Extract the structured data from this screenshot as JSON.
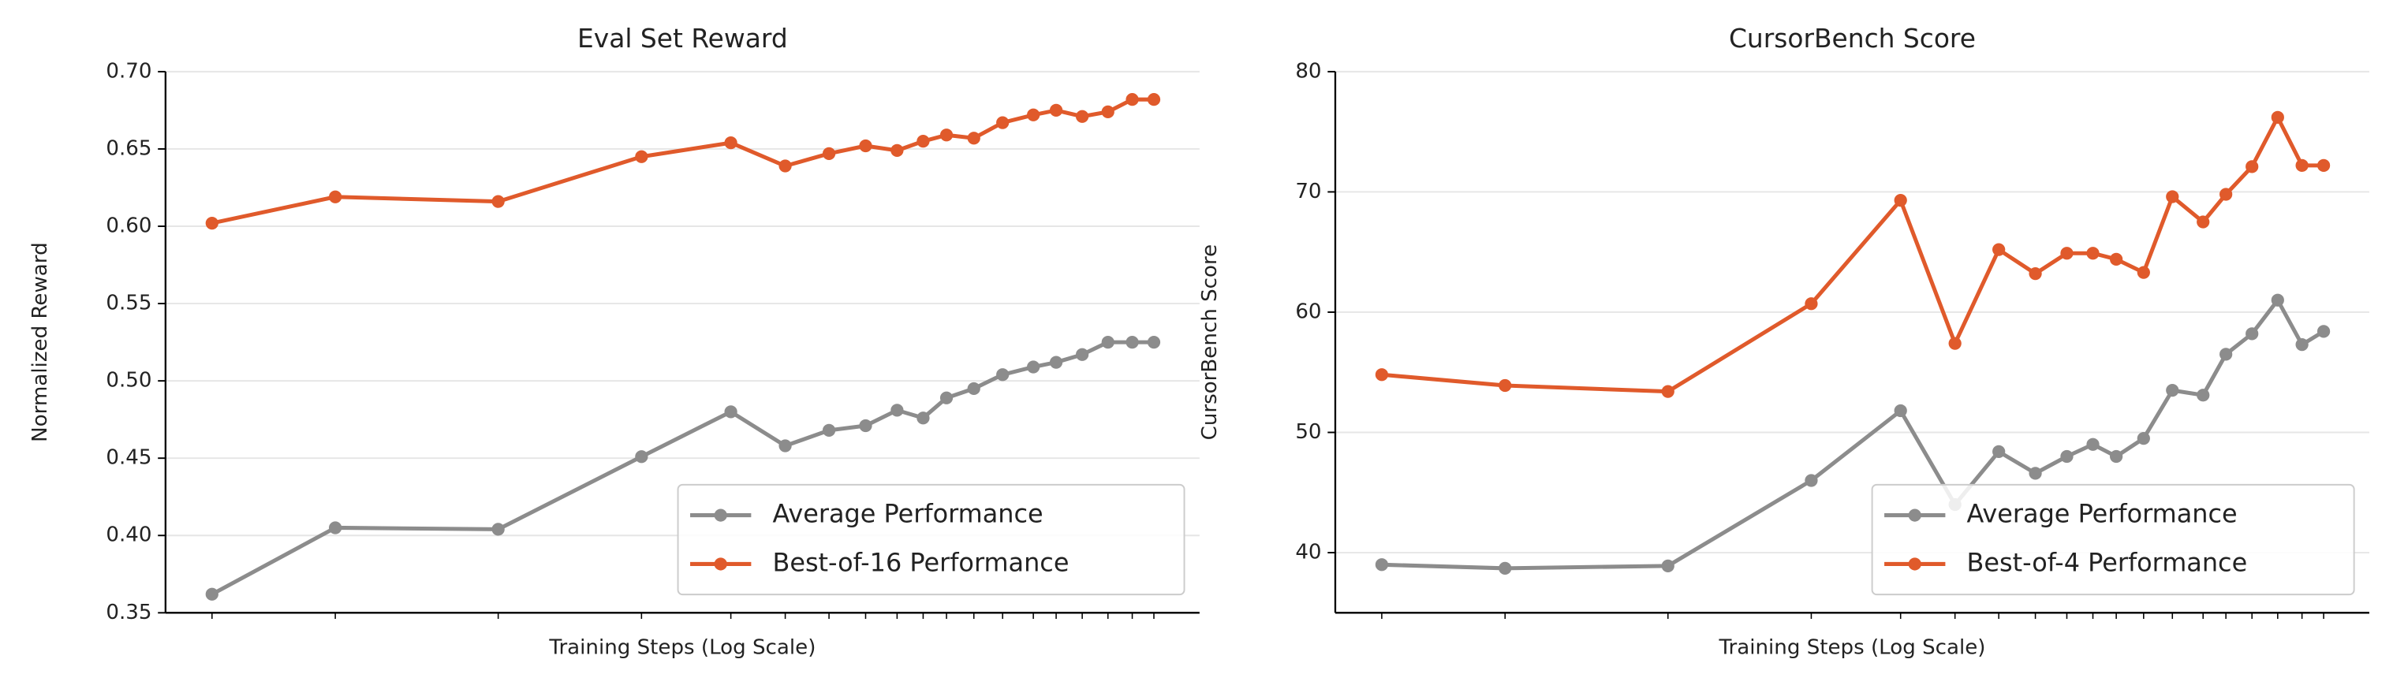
{
  "chart_data": [
    {
      "type": "line",
      "title": "Eval Set Reward",
      "xlabel": "Training Steps (Log Scale)",
      "ylabel": "Normalized Reward",
      "xscale": "log",
      "xlim": [
        1,
        100
      ],
      "x": [
        1.23,
        2.13,
        4.4,
        8.33,
        12.4,
        15.8,
        19.2,
        22.6,
        26.0,
        29.2,
        32.4,
        36.6,
        41.6,
        47.7,
        52.8,
        59.3,
        66.5,
        74.1,
        81.6
      ],
      "ylim": [
        0.35,
        0.7
      ],
      "yticks": [
        0.35,
        {
          "value": 0.4,
          "label": "0.40"
        },
        0.45,
        {
          "value": 0.5,
          "label": "0.50"
        },
        0.55,
        {
          "value": 0.6,
          "label": "0.60"
        },
        0.65,
        {
          "value": 0.7,
          "label": "0.70"
        }
      ],
      "grid": true,
      "legend": "lower right",
      "series": [
        {
          "name": "Average Performance",
          "color": "#8c8c8c",
          "values": [
            0.362,
            0.405,
            0.404,
            0.451,
            0.48,
            0.458,
            0.468,
            0.471,
            0.481,
            0.476,
            0.489,
            0.495,
            0.504,
            0.509,
            0.512,
            0.517,
            0.525,
            0.525,
            0.525
          ]
        },
        {
          "name": "Best-of-16 Performance",
          "color": "#e05a2b",
          "values": [
            0.602,
            0.619,
            0.616,
            0.645,
            0.654,
            0.639,
            0.647,
            0.652,
            0.649,
            0.655,
            0.659,
            0.657,
            0.667,
            0.672,
            0.675,
            0.671,
            0.674,
            0.682,
            0.682
          ]
        }
      ]
    },
    {
      "type": "line",
      "title": "CursorBench Score",
      "xlabel": "Training Steps (Log Scale)",
      "ylabel": "CursorBench Score",
      "xscale": "log",
      "xlim": [
        1,
        100
      ],
      "x": [
        1.23,
        2.13,
        4.4,
        8.33,
        12.4,
        15.8,
        19.2,
        22.6,
        26.0,
        29.2,
        32.4,
        36.6,
        41.6,
        47.7,
        52.8,
        59.3,
        66.5,
        74.1,
        81.6
      ],
      "ylim": [
        35,
        80
      ],
      "yticks": [
        40,
        50,
        60,
        70,
        80
      ],
      "grid": true,
      "legend": "lower right",
      "series": [
        {
          "name": "Average Performance",
          "color": "#8c8c8c",
          "values": [
            39.0,
            38.7,
            38.9,
            46.0,
            51.8,
            44.0,
            48.4,
            46.6,
            48.0,
            49.0,
            48.0,
            49.5,
            53.5,
            53.1,
            56.5,
            58.2,
            61.0,
            57.3,
            58.4
          ]
        },
        {
          "name": "Best-of-4 Performance",
          "color": "#e05a2b",
          "values": [
            54.8,
            53.9,
            53.4,
            60.7,
            69.3,
            57.4,
            65.2,
            63.2,
            64.9,
            64.9,
            64.4,
            63.3,
            69.6,
            67.5,
            69.8,
            72.1,
            76.2,
            72.2,
            72.2
          ]
        }
      ]
    }
  ]
}
